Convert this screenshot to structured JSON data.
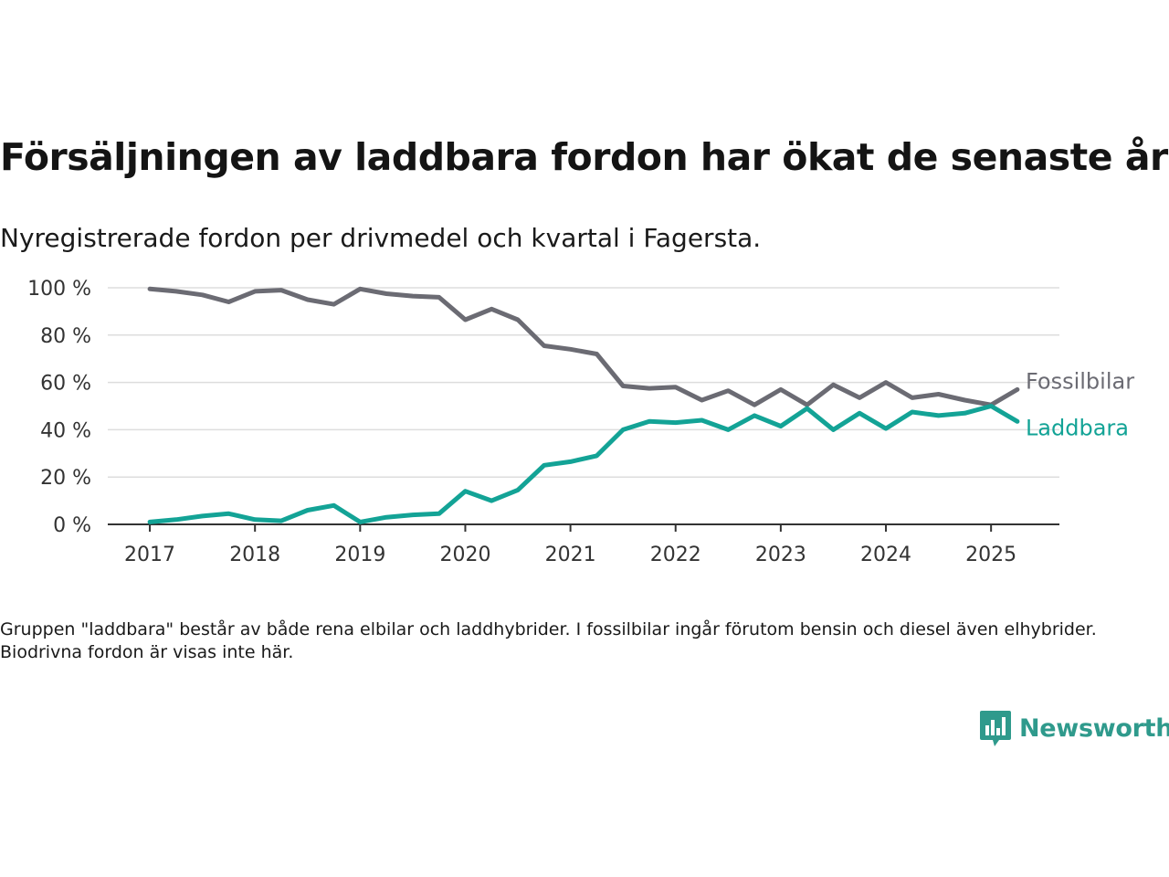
{
  "title": "Försäljningen av laddbara fordon har ökat de senaste åren",
  "subtitle": "Nyregistrerade fordon per drivmedel och kvartal i Fagersta.",
  "note": "Gruppen \"laddbara\" består av både rena elbilar och laddhybrider. I fossilbilar ingår förutom bensin och diesel även elhybrider. Biodrivna fordon är visas inte här.",
  "logo": {
    "text": "Newsworthy",
    "icon": "newsworthy-chart-icon",
    "color": "#2f9a8c"
  },
  "chart_data": {
    "type": "line",
    "title": "Försäljningen av laddbara fordon har ökat de senaste åren",
    "subtitle": "Nyregistrerade fordon per drivmedel och kvartal i Fagersta.",
    "xlabel": "",
    "ylabel": "",
    "x_tick_labels": [
      "2017",
      "2018",
      "2019",
      "2020",
      "2021",
      "2022",
      "2023",
      "2024",
      "2025"
    ],
    "y_tick_labels": [
      "0 %",
      "20 %",
      "40 %",
      "60 %",
      "80 %",
      "100 %"
    ],
    "y_ticks": [
      0,
      20,
      40,
      60,
      80,
      100
    ],
    "ylim": [
      0,
      100
    ],
    "xlim": [
      2016.6,
      2025.65
    ],
    "grid": true,
    "legend": "direct labels at line ends (right)",
    "x": [
      2017.0,
      2017.25,
      2017.5,
      2017.75,
      2018.0,
      2018.25,
      2018.5,
      2018.75,
      2019.0,
      2019.25,
      2019.5,
      2019.75,
      2020.0,
      2020.25,
      2020.5,
      2020.75,
      2021.0,
      2021.25,
      2021.5,
      2021.75,
      2022.0,
      2022.25,
      2022.5,
      2022.75,
      2023.0,
      2023.25,
      2023.5,
      2023.75,
      2024.0,
      2024.25,
      2024.5,
      2024.75,
      2025.0,
      2025.25
    ],
    "series": [
      {
        "name": "Fossilbilar",
        "color": "#6b6b73",
        "values": [
          99.5,
          98.5,
          97,
          94,
          98.5,
          99,
          95,
          93,
          99.5,
          97.5,
          96.5,
          96,
          86.5,
          91,
          86.5,
          75.5,
          74,
          72,
          58.5,
          57.5,
          58,
          52.5,
          56.5,
          50.5,
          57,
          50.5,
          59,
          53.5,
          60,
          53.5,
          55,
          52.5,
          50.5,
          57
        ]
      },
      {
        "name": "Laddbara",
        "color": "#13a396",
        "values": [
          1,
          2,
          3.5,
          4.5,
          2,
          1.5,
          6,
          8,
          1,
          3,
          4,
          4.5,
          14,
          10,
          14.5,
          25,
          26.5,
          29,
          40,
          43.5,
          43,
          44,
          40,
          46,
          41.5,
          49,
          40,
          47,
          40.5,
          47.5,
          46,
          47,
          50,
          43.5
        ]
      }
    ]
  }
}
